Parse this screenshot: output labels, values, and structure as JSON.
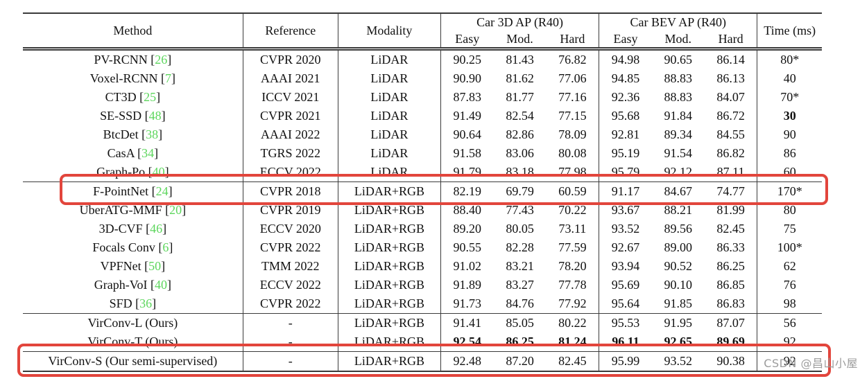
{
  "table": {
    "headers": {
      "method": "Method",
      "reference": "Reference",
      "modality": "Modality",
      "group_3d": "Car 3D AP (R40)",
      "group_bev": "Car BEV AP (R40)",
      "time": "Time (ms)",
      "sub": [
        "Easy",
        "Mod.",
        "Hard"
      ]
    },
    "rows": [
      {
        "method": "PV-RCNN",
        "cite": "26",
        "reference": "CVPR 2020",
        "modality": "LiDAR",
        "ap3d": [
          "90.25",
          "81.43",
          "76.82"
        ],
        "bev": [
          "94.98",
          "90.65",
          "86.14"
        ],
        "time": "80*"
      },
      {
        "method": "Voxel-RCNN",
        "cite": "7",
        "reference": "AAAI 2021",
        "modality": "LiDAR",
        "ap3d": [
          "90.90",
          "81.62",
          "77.06"
        ],
        "bev": [
          "94.85",
          "88.83",
          "86.13"
        ],
        "time": "40"
      },
      {
        "method": "CT3D",
        "cite": "25",
        "reference": "ICCV 2021",
        "modality": "LiDAR",
        "ap3d": [
          "87.83",
          "81.77",
          "77.16"
        ],
        "bev": [
          "92.36",
          "88.83",
          "84.07"
        ],
        "time": "70*"
      },
      {
        "method": "SE-SSD",
        "cite": "48",
        "reference": "CVPR 2021",
        "modality": "LiDAR",
        "ap3d": [
          "91.49",
          "82.54",
          "77.15"
        ],
        "bev": [
          "95.68",
          "91.84",
          "86.72"
        ],
        "time": "30",
        "bold_time": true
      },
      {
        "method": "BtcDet",
        "cite": "38",
        "reference": "AAAI 2022",
        "modality": "LiDAR",
        "ap3d": [
          "90.64",
          "82.86",
          "78.09"
        ],
        "bev": [
          "92.81",
          "89.34",
          "84.55"
        ],
        "time": "90"
      },
      {
        "method": "CasA",
        "cite": "34",
        "reference": "TGRS 2022",
        "modality": "LiDAR",
        "ap3d": [
          "91.58",
          "83.06",
          "80.08"
        ],
        "bev": [
          "95.19",
          "91.54",
          "86.82"
        ],
        "time": "86"
      },
      {
        "method": "Graph-Po",
        "cite": "40",
        "reference": "ECCV 2022",
        "modality": "LiDAR",
        "ap3d": [
          "91.79",
          "83.18",
          "77.98"
        ],
        "bev": [
          "95.79",
          "92.12",
          "87.11"
        ],
        "time": "60",
        "group_end": true
      },
      {
        "method": "F-PointNet",
        "cite": "24",
        "reference": "CVPR 2018",
        "modality": "LiDAR+RGB",
        "ap3d": [
          "82.19",
          "69.79",
          "60.59"
        ],
        "bev": [
          "91.17",
          "84.67",
          "74.77"
        ],
        "time": "170*"
      },
      {
        "method": "UberATG-MMF",
        "cite": "20",
        "reference": "CVPR 2019",
        "modality": "LiDAR+RGB",
        "ap3d": [
          "88.40",
          "77.43",
          "70.22"
        ],
        "bev": [
          "93.67",
          "88.21",
          "81.99"
        ],
        "time": "80"
      },
      {
        "method": "3D-CVF",
        "cite": "46",
        "reference": "ECCV 2020",
        "modality": "LiDAR+RGB",
        "ap3d": [
          "89.20",
          "80.05",
          "73.11"
        ],
        "bev": [
          "93.52",
          "89.56",
          "82.45"
        ],
        "time": "75"
      },
      {
        "method": "Focals Conv",
        "cite": "6",
        "reference": "CVPR 2022",
        "modality": "LiDAR+RGB",
        "ap3d": [
          "90.55",
          "82.28",
          "77.59"
        ],
        "bev": [
          "92.67",
          "89.00",
          "86.33"
        ],
        "time": "100*"
      },
      {
        "method": "VPFNet",
        "cite": "50",
        "reference": "TMM 2022",
        "modality": "LiDAR+RGB",
        "ap3d": [
          "91.02",
          "83.21",
          "78.20"
        ],
        "bev": [
          "93.94",
          "90.52",
          "86.25"
        ],
        "time": "62"
      },
      {
        "method": "Graph-VoI",
        "cite": "40",
        "reference": "ECCV 2022",
        "modality": "LiDAR+RGB",
        "ap3d": [
          "91.89",
          "83.27",
          "77.78"
        ],
        "bev": [
          "95.69",
          "90.10",
          "86.85"
        ],
        "time": "76"
      },
      {
        "method": "SFD",
        "cite": "36",
        "reference": "CVPR 2022",
        "modality": "LiDAR+RGB",
        "ap3d": [
          "91.73",
          "84.76",
          "77.92"
        ],
        "bev": [
          "95.64",
          "91.85",
          "86.83"
        ],
        "time": "98",
        "group_end": true
      },
      {
        "method": "VirConv-L (Ours)",
        "cite": null,
        "reference": "-",
        "modality": "LiDAR+RGB",
        "ap3d": [
          "91.41",
          "85.05",
          "80.22"
        ],
        "bev": [
          "95.53",
          "91.95",
          "87.07"
        ],
        "time": "56"
      },
      {
        "method": "VirConv-T (Ours)",
        "cite": null,
        "reference": "-",
        "modality": "LiDAR+RGB",
        "ap3d": [
          "92.54",
          "86.25",
          "81.24"
        ],
        "bev": [
          "96.11",
          "92.65",
          "89.69"
        ],
        "time": "92",
        "bold_ap": true,
        "group_end": true
      },
      {
        "method": "VirConv-S (Our semi-supervised)",
        "cite": null,
        "reference": "-",
        "modality": "LiDAR+RGB",
        "ap3d": [
          "92.48",
          "87.20",
          "82.45"
        ],
        "bev": [
          "95.99",
          "93.52",
          "90.38"
        ],
        "time": "92"
      }
    ]
  },
  "annotations": {
    "highlighted_rows": [
      "F-PointNet [24]",
      "VirConv-S (Our semi-supervised)"
    ],
    "highlight_color": "#e2453c"
  },
  "watermark": "CSDN @昌山小屋",
  "colors": {
    "citation_green": "#5cd65c",
    "highlight_red": "#e2453c",
    "watermark_gray": "#9c9c9c",
    "rule_black": "#3a3a3a"
  }
}
